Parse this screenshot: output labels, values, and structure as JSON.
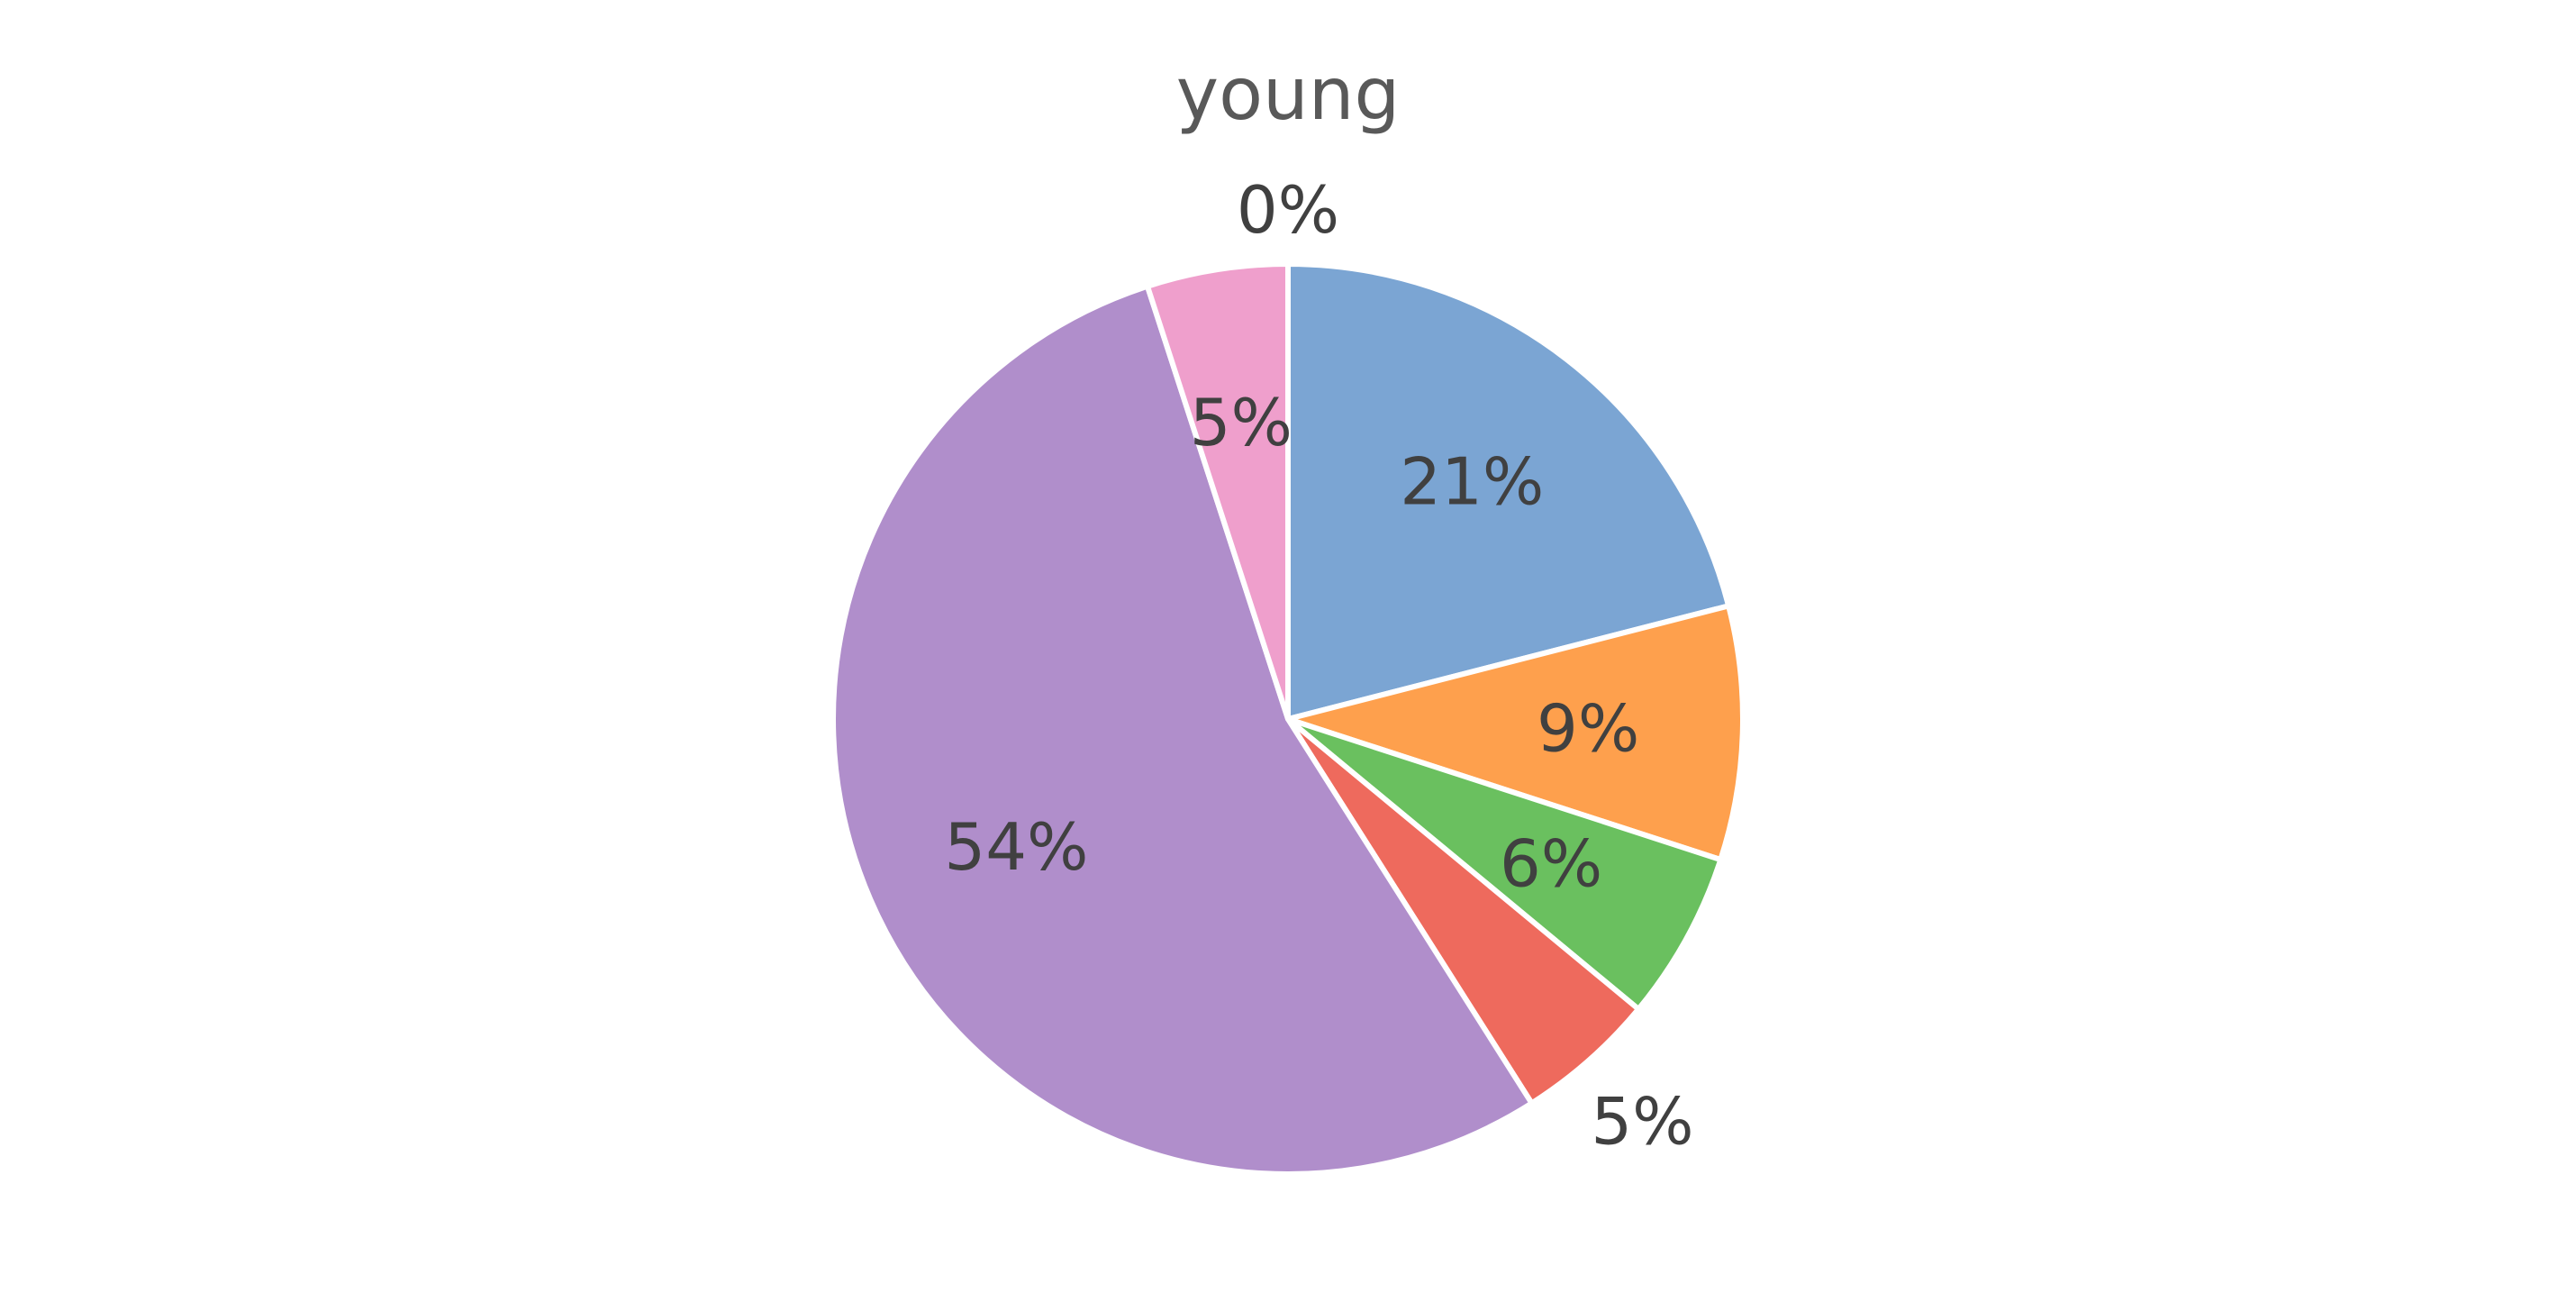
{
  "chart_data": {
    "type": "pie",
    "title": "young",
    "start_angle_deg": 0,
    "direction": "clockwise",
    "slices": [
      {
        "value": 21,
        "label": "21%",
        "color": "#7BA5D3",
        "label_position": "inside"
      },
      {
        "value": 9,
        "label": "9%",
        "color": "#FEA04D",
        "label_position": "inside"
      },
      {
        "value": 6,
        "label": "6%",
        "color": "#6AC05F",
        "label_position": "inside"
      },
      {
        "value": 5,
        "label": "5%",
        "color": "#EE6A5D",
        "label_position": "outside"
      },
      {
        "value": 54,
        "label": "54%",
        "color": "#B08ECB",
        "label_position": "inside"
      },
      {
        "value": 5,
        "label": "5%",
        "color": "#EF9FCC",
        "label_position": "inside"
      },
      {
        "value": 0,
        "label": "0%",
        "color": "#9C9C9C",
        "label_position": "outside"
      }
    ]
  }
}
